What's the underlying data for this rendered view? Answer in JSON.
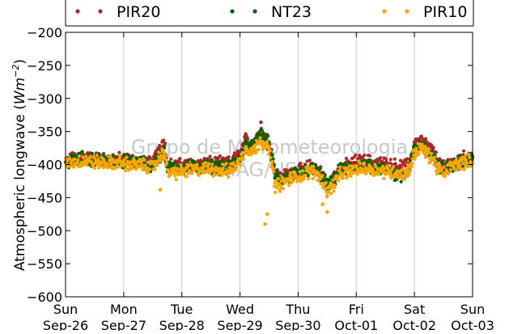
{
  "chart_data": {
    "type": "scatter",
    "ylabel_text": "Atmospheric longwave (",
    "ylabel_unit_base": "Wm",
    "ylabel_unit_exp": "−2",
    "ylabel_close": ")",
    "ylim": [
      -600,
      -200
    ],
    "yticks": [
      -200,
      -250,
      -300,
      -350,
      -400,
      -450,
      -500,
      -550,
      -600
    ],
    "ytick_labels": [
      "−200",
      "−250",
      "−300",
      "−350",
      "−400",
      "−450",
      "−500",
      "−550",
      "−600"
    ],
    "x_day_labels": [
      "Sun",
      "Mon",
      "Tue",
      "Wed",
      "Thu",
      "Fri",
      "Sat",
      "Sun"
    ],
    "x_date_labels": [
      "Sep-26",
      "Sep-27",
      "Sep-28",
      "Sep-29",
      "Sep-30",
      "Oct-01",
      "Oct-02",
      "Oct-03"
    ],
    "xlim_days": [
      0,
      7
    ],
    "grid": "vertical",
    "legend_placement": "top",
    "watermark": [
      "Grupo de Micrometeorologia",
      "IAG/USP"
    ],
    "series": [
      {
        "name": "PIR20",
        "color": "#a52a2a",
        "keyframes": [
          [
            0.0,
            -397
          ],
          [
            0.1,
            -392
          ],
          [
            0.3,
            -389
          ],
          [
            0.5,
            -391
          ],
          [
            0.7,
            -393
          ],
          [
            0.95,
            -392
          ],
          [
            1.0,
            -392
          ],
          [
            1.3,
            -396
          ],
          [
            1.5,
            -399
          ],
          [
            1.6,
            -375
          ],
          [
            1.7,
            -364
          ],
          [
            1.75,
            -400
          ],
          [
            1.9,
            -402
          ],
          [
            2.2,
            -399
          ],
          [
            2.5,
            -398
          ],
          [
            2.8,
            -399
          ],
          [
            3.0,
            -385
          ],
          [
            3.1,
            -362
          ],
          [
            3.2,
            -368
          ],
          [
            3.3,
            -358
          ],
          [
            3.35,
            -346
          ],
          [
            3.4,
            -355
          ],
          [
            3.5,
            -365
          ],
          [
            3.55,
            -385
          ],
          [
            3.6,
            -410
          ],
          [
            3.7,
            -420
          ],
          [
            3.9,
            -412
          ],
          [
            4.1,
            -408
          ],
          [
            4.2,
            -402
          ],
          [
            4.3,
            -405
          ],
          [
            4.45,
            -418
          ],
          [
            4.5,
            -430
          ],
          [
            4.6,
            -422
          ],
          [
            4.7,
            -405
          ],
          [
            4.9,
            -400
          ],
          [
            5.0,
            -395
          ],
          [
            5.2,
            -395
          ],
          [
            5.5,
            -400
          ],
          [
            5.7,
            -402
          ],
          [
            5.8,
            -404
          ],
          [
            5.9,
            -400
          ],
          [
            6.0,
            -370
          ],
          [
            6.1,
            -362
          ],
          [
            6.2,
            -370
          ],
          [
            6.3,
            -378
          ],
          [
            6.4,
            -395
          ],
          [
            6.5,
            -405
          ],
          [
            6.6,
            -398
          ],
          [
            6.7,
            -395
          ],
          [
            6.85,
            -390
          ],
          [
            7.0,
            -387
          ]
        ]
      },
      {
        "name": "NT23",
        "color": "#006400",
        "keyframes": [
          [
            0.0,
            -397
          ],
          [
            0.1,
            -395
          ],
          [
            0.3,
            -391
          ],
          [
            0.5,
            -393
          ],
          [
            0.7,
            -395
          ],
          [
            0.95,
            -394
          ],
          [
            1.0,
            -396
          ],
          [
            1.3,
            -398
          ],
          [
            1.5,
            -402
          ],
          [
            1.6,
            -390
          ],
          [
            1.7,
            -378
          ],
          [
            1.75,
            -405
          ],
          [
            1.9,
            -406
          ],
          [
            2.2,
            -404
          ],
          [
            2.5,
            -403
          ],
          [
            2.8,
            -405
          ],
          [
            3.0,
            -392
          ],
          [
            3.1,
            -370
          ],
          [
            3.2,
            -375
          ],
          [
            3.3,
            -365
          ],
          [
            3.35,
            -352
          ],
          [
            3.4,
            -360
          ],
          [
            3.5,
            -370
          ],
          [
            3.55,
            -390
          ],
          [
            3.6,
            -415
          ],
          [
            3.7,
            -424
          ],
          [
            3.9,
            -416
          ],
          [
            4.1,
            -412
          ],
          [
            4.2,
            -406
          ],
          [
            4.3,
            -409
          ],
          [
            4.45,
            -422
          ],
          [
            4.5,
            -435
          ],
          [
            4.6,
            -426
          ],
          [
            4.7,
            -410
          ],
          [
            4.9,
            -405
          ],
          [
            5.0,
            -405
          ],
          [
            5.2,
            -404
          ],
          [
            5.5,
            -408
          ],
          [
            5.7,
            -414
          ],
          [
            5.8,
            -416
          ],
          [
            5.9,
            -408
          ],
          [
            6.0,
            -378
          ],
          [
            6.1,
            -370
          ],
          [
            6.2,
            -378
          ],
          [
            6.3,
            -385
          ],
          [
            6.4,
            -402
          ],
          [
            6.5,
            -410
          ],
          [
            6.6,
            -402
          ],
          [
            6.7,
            -398
          ],
          [
            6.85,
            -394
          ],
          [
            7.0,
            -391
          ]
        ]
      },
      {
        "name": "PIR10",
        "color": "#ffa500",
        "keyframes": [
          [
            0.0,
            -399
          ],
          [
            0.1,
            -397
          ],
          [
            0.3,
            -394
          ],
          [
            0.5,
            -396
          ],
          [
            0.7,
            -398
          ],
          [
            0.95,
            -397
          ],
          [
            1.0,
            -399
          ],
          [
            1.3,
            -401
          ],
          [
            1.5,
            -404
          ],
          [
            1.6,
            -392
          ],
          [
            1.7,
            -380
          ],
          [
            1.75,
            -412
          ],
          [
            1.9,
            -412
          ],
          [
            2.2,
            -408
          ],
          [
            2.5,
            -406
          ],
          [
            2.8,
            -410
          ],
          [
            3.0,
            -396
          ],
          [
            3.1,
            -374
          ],
          [
            3.2,
            -380
          ],
          [
            3.3,
            -372
          ],
          [
            3.35,
            -360
          ],
          [
            3.4,
            -368
          ],
          [
            3.5,
            -378
          ],
          [
            3.55,
            -398
          ],
          [
            3.6,
            -432
          ],
          [
            3.7,
            -430
          ],
          [
            3.9,
            -420
          ],
          [
            4.1,
            -415
          ],
          [
            4.2,
            -410
          ],
          [
            4.3,
            -412
          ],
          [
            4.45,
            -428
          ],
          [
            4.5,
            -440
          ],
          [
            4.6,
            -432
          ],
          [
            4.7,
            -416
          ],
          [
            4.9,
            -410
          ],
          [
            5.0,
            -406
          ],
          [
            5.2,
            -406
          ],
          [
            5.5,
            -410
          ],
          [
            5.7,
            -412
          ],
          [
            5.8,
            -414
          ],
          [
            5.9,
            -410
          ],
          [
            6.0,
            -382
          ],
          [
            6.1,
            -374
          ],
          [
            6.2,
            -382
          ],
          [
            6.3,
            -390
          ],
          [
            6.4,
            -406
          ],
          [
            6.5,
            -414
          ],
          [
            6.6,
            -405
          ],
          [
            6.7,
            -400
          ],
          [
            6.85,
            -396
          ],
          [
            7.0,
            -394
          ]
        ]
      }
    ],
    "outliers": [
      {
        "series": "PIR10",
        "x": 3.43,
        "y": -490
      },
      {
        "series": "PIR10",
        "x": 3.47,
        "y": -475
      },
      {
        "series": "PIR10",
        "x": 4.5,
        "y": -472
      },
      {
        "series": "PIR10",
        "x": 4.42,
        "y": -460
      },
      {
        "series": "PIR10",
        "x": 1.63,
        "y": -438
      },
      {
        "series": "PIR20",
        "x": 3.36,
        "y": -336
      }
    ]
  }
}
